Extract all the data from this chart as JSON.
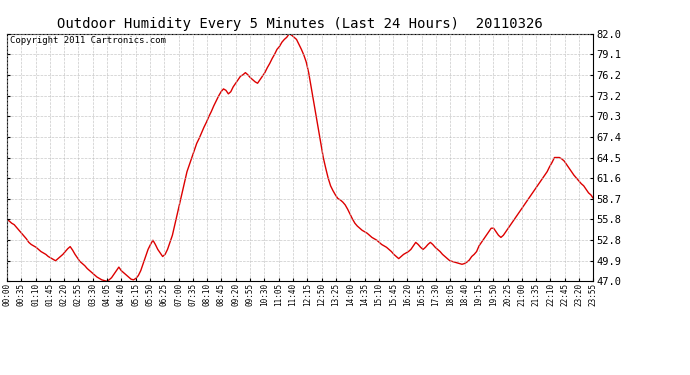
{
  "title": "Outdoor Humidity Every 5 Minutes (Last 24 Hours)  20110326",
  "copyright": "Copyright 2011 Cartronics.com",
  "line_color": "#dd0000",
  "bg_color": "#ffffff",
  "grid_color": "#bbbbbb",
  "ylim": [
    47.0,
    82.0
  ],
  "yticks": [
    47.0,
    49.9,
    52.8,
    55.8,
    58.7,
    61.6,
    64.5,
    67.4,
    70.3,
    73.2,
    76.2,
    79.1,
    82.0
  ],
  "xtick_labels": [
    "00:00",
    "00:35",
    "01:10",
    "01:45",
    "02:20",
    "02:55",
    "03:30",
    "04:05",
    "04:40",
    "05:15",
    "05:50",
    "06:25",
    "07:00",
    "07:35",
    "08:10",
    "08:45",
    "09:20",
    "09:55",
    "10:30",
    "11:05",
    "11:40",
    "12:15",
    "12:50",
    "13:25",
    "14:00",
    "14:35",
    "15:10",
    "15:45",
    "16:20",
    "16:55",
    "17:30",
    "18:05",
    "18:40",
    "19:15",
    "19:50",
    "20:25",
    "21:00",
    "21:35",
    "22:10",
    "22:45",
    "23:20",
    "23:55"
  ],
  "humidity_values": [
    55.8,
    55.5,
    55.2,
    55.0,
    54.6,
    54.2,
    53.8,
    53.4,
    53.0,
    52.5,
    52.2,
    52.0,
    51.8,
    51.5,
    51.2,
    51.0,
    50.8,
    50.5,
    50.3,
    50.1,
    49.9,
    50.2,
    50.5,
    50.8,
    51.2,
    51.6,
    51.9,
    51.4,
    50.8,
    50.3,
    49.8,
    49.5,
    49.2,
    48.8,
    48.5,
    48.2,
    47.9,
    47.6,
    47.4,
    47.2,
    47.1,
    47.0,
    47.2,
    47.5,
    48.0,
    48.5,
    49.0,
    48.5,
    48.2,
    47.9,
    47.6,
    47.3,
    47.2,
    47.4,
    47.8,
    48.5,
    49.5,
    50.5,
    51.5,
    52.2,
    52.8,
    52.2,
    51.5,
    51.0,
    50.5,
    50.8,
    51.5,
    52.5,
    53.5,
    55.0,
    56.5,
    58.0,
    59.5,
    61.0,
    62.5,
    63.5,
    64.5,
    65.5,
    66.5,
    67.2,
    68.0,
    68.8,
    69.5,
    70.3,
    71.0,
    71.8,
    72.5,
    73.2,
    73.8,
    74.2,
    74.0,
    73.5,
    73.8,
    74.5,
    75.0,
    75.5,
    76.0,
    76.2,
    76.5,
    76.2,
    75.8,
    75.5,
    75.2,
    75.0,
    75.5,
    76.0,
    76.5,
    77.2,
    77.8,
    78.5,
    79.1,
    79.8,
    80.2,
    80.8,
    81.2,
    81.5,
    82.0,
    81.8,
    81.5,
    81.2,
    80.5,
    79.8,
    79.0,
    78.0,
    76.5,
    74.5,
    72.5,
    70.5,
    68.5,
    66.5,
    64.5,
    63.0,
    61.6,
    60.5,
    59.8,
    59.2,
    58.7,
    58.5,
    58.2,
    57.8,
    57.2,
    56.5,
    55.8,
    55.2,
    54.8,
    54.5,
    54.2,
    54.0,
    53.8,
    53.5,
    53.2,
    53.0,
    52.8,
    52.5,
    52.2,
    52.0,
    51.8,
    51.5,
    51.2,
    50.8,
    50.5,
    50.2,
    50.5,
    50.8,
    51.0,
    51.2,
    51.5,
    52.0,
    52.5,
    52.2,
    51.8,
    51.5,
    51.8,
    52.2,
    52.5,
    52.2,
    51.8,
    51.5,
    51.2,
    50.8,
    50.5,
    50.2,
    49.9,
    49.8,
    49.7,
    49.6,
    49.5,
    49.4,
    49.5,
    49.7,
    50.0,
    50.5,
    50.8,
    51.2,
    52.0,
    52.5,
    53.0,
    53.5,
    54.0,
    54.5,
    54.5,
    54.0,
    53.5,
    53.2,
    53.5,
    54.0,
    54.5,
    55.0,
    55.5,
    56.0,
    56.5,
    57.0,
    57.5,
    58.0,
    58.5,
    59.0,
    59.5,
    60.0,
    60.5,
    61.0,
    61.5,
    62.0,
    62.5,
    63.2,
    63.8,
    64.5,
    64.5,
    64.5,
    64.3,
    64.0,
    63.5,
    63.0,
    62.5,
    62.0,
    61.6,
    61.2,
    60.8,
    60.5,
    60.0,
    59.5,
    59.2,
    58.7
  ]
}
